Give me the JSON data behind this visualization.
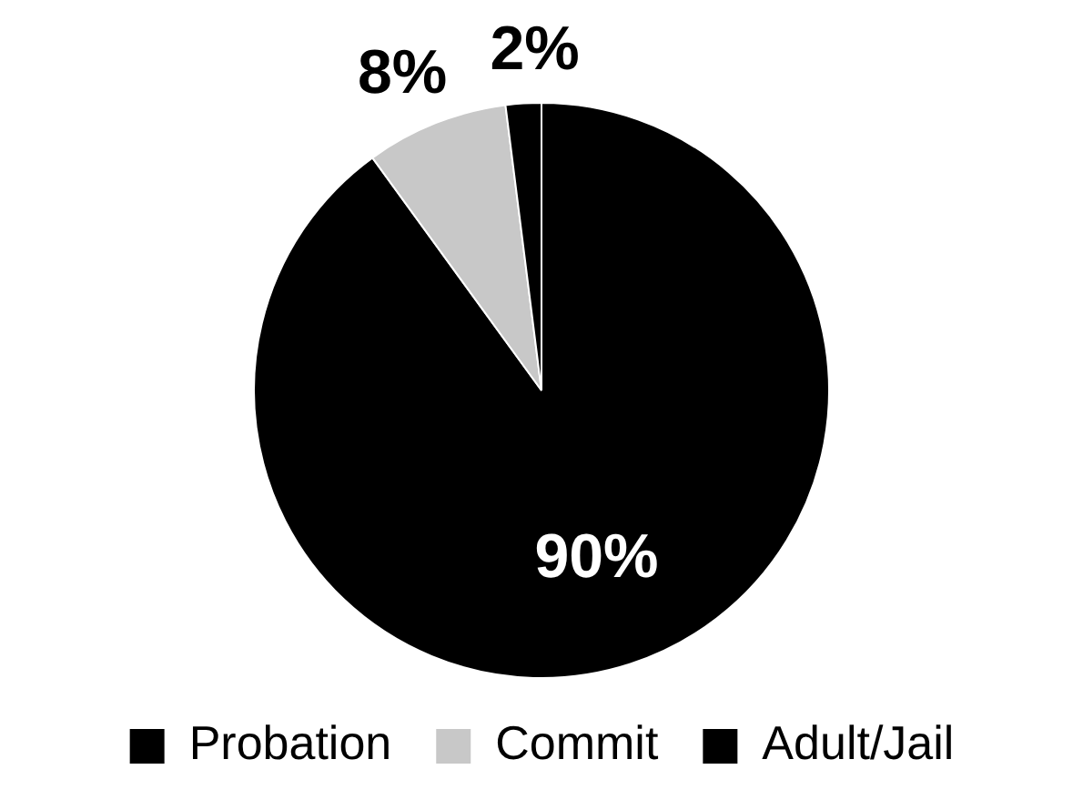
{
  "chart_data": {
    "type": "pie",
    "categories": [
      "Probation",
      "Commit",
      "Adult/Jail"
    ],
    "values": [
      90,
      8,
      2
    ],
    "colors": [
      "#000000",
      "#c8c8c8",
      "#000000"
    ],
    "value_labels": [
      "90%",
      "8%",
      "2%"
    ],
    "legend": "bottom"
  }
}
